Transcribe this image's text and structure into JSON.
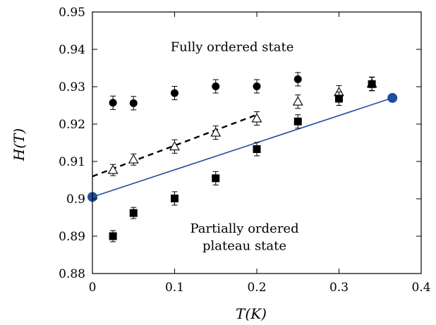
{
  "chart_data": {
    "type": "scatter",
    "xlabel": "T(K)",
    "ylabel": "H(T)",
    "xlim": [
      0,
      0.4
    ],
    "ylim": [
      0.88,
      0.95
    ],
    "x_ticks": [
      "0",
      "0.1",
      "0.2",
      "0.3",
      "0.4"
    ],
    "y_ticks": [
      "0.88",
      "0.89",
      "0.9",
      "0.91",
      "0.92",
      "0.93",
      "0.94",
      "0.95"
    ],
    "grid": false,
    "legend": "none",
    "annotations": [
      {
        "text": "Fully ordered state",
        "x": 0.17,
        "y": 0.9395
      },
      {
        "text": "Partially ordered",
        "x": 0.185,
        "y": 0.8909
      },
      {
        "text": "plateau state",
        "x": 0.185,
        "y": 0.8863
      }
    ],
    "series": [
      {
        "marker": "circle",
        "color": "#000000",
        "points": [
          {
            "x": 0.025,
            "y": 0.9257,
            "err": 0.0018
          },
          {
            "x": 0.05,
            "y": 0.9256,
            "err": 0.0018
          },
          {
            "x": 0.1,
            "y": 0.9283,
            "err": 0.0018
          },
          {
            "x": 0.15,
            "y": 0.9301,
            "err": 0.0018
          },
          {
            "x": 0.2,
            "y": 0.9301,
            "err": 0.0018
          },
          {
            "x": 0.25,
            "y": 0.932,
            "err": 0.0018
          }
        ]
      },
      {
        "marker": "open-triangle",
        "color": "#000000",
        "points": [
          {
            "x": 0.025,
            "y": 0.9077,
            "err": 0.0015
          },
          {
            "x": 0.05,
            "y": 0.9105,
            "err": 0.0015
          },
          {
            "x": 0.1,
            "y": 0.914,
            "err": 0.0018
          },
          {
            "x": 0.15,
            "y": 0.9177,
            "err": 0.0018
          },
          {
            "x": 0.2,
            "y": 0.9215,
            "err": 0.0018
          },
          {
            "x": 0.25,
            "y": 0.926,
            "err": 0.0018
          },
          {
            "x": 0.3,
            "y": 0.9285,
            "err": 0.0018
          },
          {
            "x": 0.34,
            "y": 0.9308,
            "err": 0.0018
          }
        ]
      },
      {
        "marker": "square",
        "color": "#000000",
        "points": [
          {
            "x": 0.025,
            "y": 0.89,
            "err": 0.0015
          },
          {
            "x": 0.05,
            "y": 0.8962,
            "err": 0.0015
          },
          {
            "x": 0.1,
            "y": 0.9001,
            "err": 0.0018
          },
          {
            "x": 0.15,
            "y": 0.9055,
            "err": 0.0018
          },
          {
            "x": 0.2,
            "y": 0.9133,
            "err": 0.0018
          },
          {
            "x": 0.25,
            "y": 0.9207,
            "err": 0.0018
          },
          {
            "x": 0.3,
            "y": 0.9268,
            "err": 0.0018
          },
          {
            "x": 0.34,
            "y": 0.9307,
            "err": 0.0018
          }
        ]
      }
    ],
    "lines": [
      {
        "style": "dashed",
        "color": "#000000",
        "from": {
          "x": 0,
          "y": 0.906
        },
        "to": {
          "x": 0.2,
          "y": 0.9225
        }
      },
      {
        "style": "solid",
        "color": "#1f4ea1",
        "from": {
          "x": 0,
          "y": 0.9005
        },
        "to": {
          "x": 0.365,
          "y": 0.927
        }
      }
    ],
    "endpoints": [
      {
        "color": "#1f4ea1",
        "x": 0,
        "y": 0.9005
      },
      {
        "color": "#1f4ea1",
        "x": 0.365,
        "y": 0.927
      }
    ]
  }
}
